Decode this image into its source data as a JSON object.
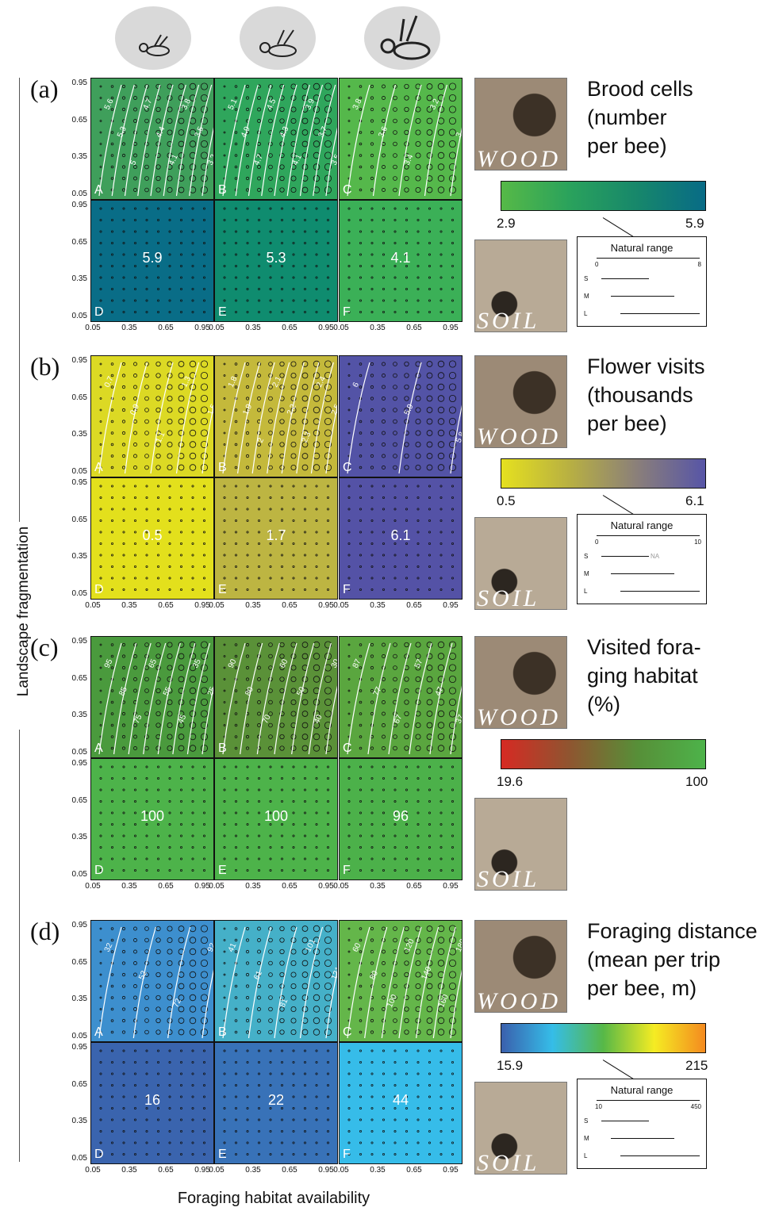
{
  "axis_labels": {
    "y": "Landscape fragmentation",
    "x": "Foraging habitat availability",
    "ticks": [
      "0.05",
      "0.35",
      "0.65",
      "0.95"
    ]
  },
  "bee_icons": [
    "small-bee-icon",
    "medium-bee-icon",
    "large-bee-icon"
  ],
  "panels": [
    {
      "letter": "(a)",
      "title": "Brood cells\n(number\nper bee)",
      "photo_top": "WOOD",
      "photo_bottom": "SOIL",
      "colorbar": {
        "min": "2.9",
        "max": "5.9",
        "colors": [
          "#56b947",
          "#2aa25c",
          "#17876b",
          "#086b86"
        ]
      },
      "natural_range": {
        "title": "Natural range",
        "min": "0",
        "max": "8",
        "rows": [
          "S",
          "M",
          "L"
        ],
        "na": ""
      },
      "cells": [
        {
          "letter": "A",
          "color": "#3f9f5b",
          "value": "",
          "contours": [
            "5.6",
            "5.3",
            "5",
            "4.7",
            "4.4",
            "4.1",
            "3.8",
            "3.5",
            "3.2"
          ]
        },
        {
          "letter": "B",
          "color": "#2fa65c",
          "value": "",
          "contours": [
            "5.1",
            "4.9",
            "4.7",
            "4.5",
            "4.3",
            "4.1",
            "3.9",
            "3.7",
            "3.5"
          ]
        },
        {
          "letter": "C",
          "color": "#55b84b",
          "value": "",
          "contours": [
            "3.8",
            "3.6",
            "3.4",
            "3.2",
            "3"
          ]
        },
        {
          "letter": "D",
          "color": "#096d87",
          "value": "5.9",
          "contours": []
        },
        {
          "letter": "E",
          "color": "#0f8c6f",
          "value": "5.3",
          "contours": []
        },
        {
          "letter": "F",
          "color": "#3bb057",
          "value": "4.1",
          "contours": []
        }
      ]
    },
    {
      "letter": "(b)",
      "title": "Flower visits\n(thousands\nper bee)",
      "photo_top": "WOOD",
      "photo_bottom": "SOIL",
      "colorbar": {
        "min": "0.5",
        "max": "6.1",
        "colors": [
          "#e5e01f",
          "#b8b042",
          "#8a7f7a",
          "#5755a7"
        ]
      },
      "natural_range": {
        "title": "Natural range",
        "min": "0",
        "max": "10",
        "rows": [
          "S",
          "M",
          "L"
        ],
        "na": "NA"
      },
      "cells": [
        {
          "letter": "A",
          "color": "#dcd924",
          "value": "",
          "contours": [
            "0.7",
            "0.9",
            "1.1",
            "1.3",
            "1.5"
          ]
        },
        {
          "letter": "B",
          "color": "#c4b93b",
          "value": "",
          "contours": [
            "1.8",
            "1.9",
            "2",
            "2.1",
            "2.2",
            "2.3",
            "2.4",
            "2.5"
          ]
        },
        {
          "letter": "C",
          "color": "#5353a6",
          "value": "",
          "contours": [
            "6",
            "5.9",
            "5.8"
          ]
        },
        {
          "letter": "D",
          "color": "#e3e01c",
          "value": "0.5",
          "contours": []
        },
        {
          "letter": "E",
          "color": "#bdb542",
          "value": "1.7",
          "contours": []
        },
        {
          "letter": "F",
          "color": "#5452a6",
          "value": "6.1",
          "contours": []
        }
      ]
    },
    {
      "letter": "(c)",
      "title": "Visited fora-\nging habitat\n(%)",
      "photo_top": "WOOD",
      "photo_bottom": "SOIL",
      "colorbar": {
        "min": "19.6",
        "max": "100",
        "colors": [
          "#d62a23",
          "#8f5530",
          "#578f38",
          "#4db34a"
        ]
      },
      "natural_range": {
        "title": "",
        "min": "",
        "max": "",
        "rows": [],
        "na": ""
      },
      "cells": [
        {
          "letter": "A",
          "color": "#4a9a3d",
          "value": "",
          "contours": [
            "95",
            "85",
            "75",
            "65",
            "55",
            "45",
            "35",
            "25"
          ]
        },
        {
          "letter": "B",
          "color": "#5a9138",
          "value": "",
          "contours": [
            "90",
            "80",
            "70",
            "60",
            "50",
            "40",
            "30"
          ]
        },
        {
          "letter": "C",
          "color": "#5aa63f",
          "value": "",
          "contours": [
            "87",
            "77",
            "67",
            "57",
            "47",
            "37"
          ]
        },
        {
          "letter": "D",
          "color": "#4db34a",
          "value": "100",
          "contours": []
        },
        {
          "letter": "E",
          "color": "#4db34a",
          "value": "100",
          "contours": []
        },
        {
          "letter": "F",
          "color": "#4cb14a",
          "value": "96",
          "contours": []
        }
      ]
    },
    {
      "letter": "(d)",
      "title": "Foraging distance\n(mean per trip\nper bee, m)",
      "photo_top": "WOOD",
      "photo_bottom": "SOIL",
      "colorbar": {
        "min": "15.9",
        "max": "215",
        "colors": [
          "#3a60ad",
          "#35bde8",
          "#57b847",
          "#f5ec23",
          "#f48a1f"
        ]
      },
      "natural_range": {
        "title": "Natural range",
        "min": "10",
        "max": "450",
        "rows": [
          "S",
          "M",
          "L"
        ],
        "na": ""
      },
      "cells": [
        {
          "letter": "A",
          "color": "#3d8fce",
          "value": "",
          "contours": [
            "32",
            "52",
            "72",
            "92"
          ]
        },
        {
          "letter": "B",
          "color": "#45b0c8",
          "value": "",
          "contours": [
            "41",
            "61",
            "81",
            "101",
            "121"
          ]
        },
        {
          "letter": "C",
          "color": "#64b64a",
          "value": "",
          "contours": [
            "60",
            "80",
            "100",
            "120",
            "140",
            "160",
            "180"
          ]
        },
        {
          "letter": "D",
          "color": "#3a64ae",
          "value": "16",
          "contours": []
        },
        {
          "letter": "E",
          "color": "#3872b8",
          "value": "22",
          "contours": []
        },
        {
          "letter": "F",
          "color": "#36bce9",
          "value": "44",
          "contours": []
        }
      ]
    }
  ],
  "chart_data": [
    {
      "type": "heatmap",
      "title": "Brood cells (number per bee)",
      "xlabel": "Foraging habitat availability",
      "ylabel": "Landscape fragmentation",
      "xlim": [
        0.05,
        0.95
      ],
      "ylim": [
        0.05,
        0.95
      ],
      "colorbar_range": [
        2.9,
        5.9
      ],
      "cells": {
        "D": 5.9,
        "E": 5.3,
        "F": 4.1
      }
    },
    {
      "type": "heatmap",
      "title": "Flower visits (thousands per bee)",
      "xlabel": "Foraging habitat availability",
      "ylabel": "Landscape fragmentation",
      "xlim": [
        0.05,
        0.95
      ],
      "ylim": [
        0.05,
        0.95
      ],
      "colorbar_range": [
        0.5,
        6.1
      ],
      "cells": {
        "D": 0.5,
        "E": 1.7,
        "F": 6.1
      }
    },
    {
      "type": "heatmap",
      "title": "Visited foraging habitat (%)",
      "xlabel": "Foraging habitat availability",
      "ylabel": "Landscape fragmentation",
      "xlim": [
        0.05,
        0.95
      ],
      "ylim": [
        0.05,
        0.95
      ],
      "colorbar_range": [
        19.6,
        100
      ],
      "cells": {
        "D": 100,
        "E": 100,
        "F": 96
      }
    },
    {
      "type": "heatmap",
      "title": "Foraging distance (mean per trip per bee, m)",
      "xlabel": "Foraging habitat availability",
      "ylabel": "Landscape fragmentation",
      "xlim": [
        0.05,
        0.95
      ],
      "ylim": [
        0.05,
        0.95
      ],
      "colorbar_range": [
        15.9,
        215
      ],
      "cells": {
        "D": 16,
        "E": 22,
        "F": 44
      }
    }
  ]
}
